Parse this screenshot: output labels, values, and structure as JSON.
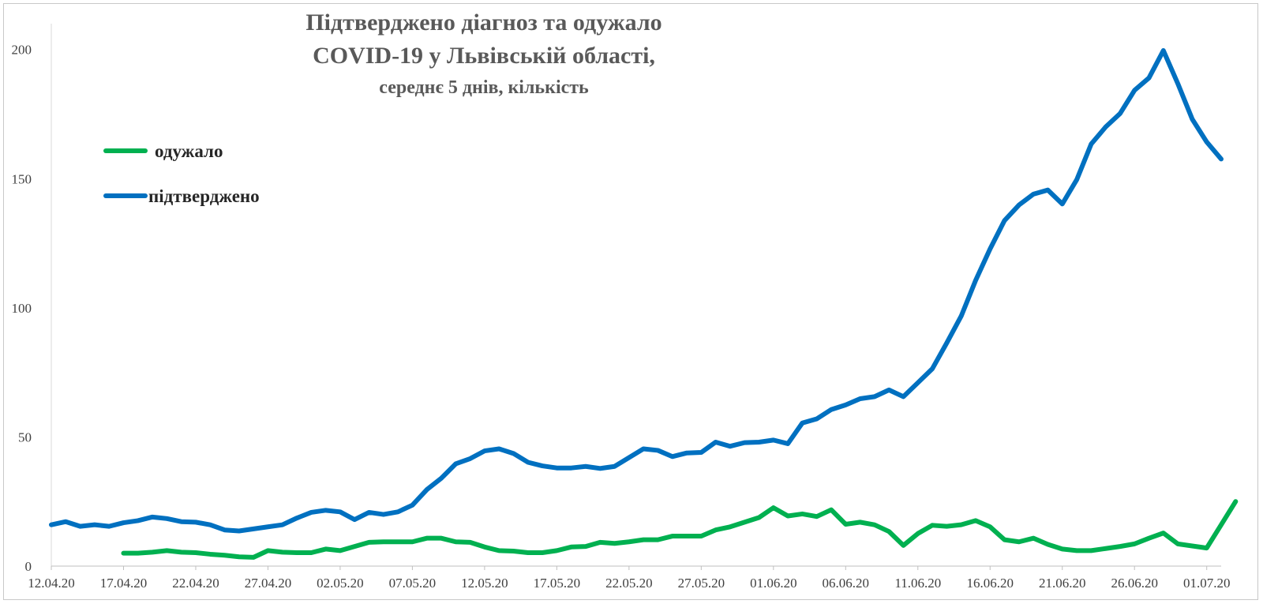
{
  "chart_data": {
    "type": "line",
    "title": [
      "Підтверджено діагноз та одужало",
      "COVID-19 у Львівській області,",
      "середнє 5 днів, кількість"
    ],
    "xlabel": "",
    "ylabel": "",
    "ylim": [
      0,
      210
    ],
    "yticks": [
      "0",
      "50",
      "100",
      "150",
      "200"
    ],
    "xticks": [
      "12.04.20",
      "17.04.20",
      "22.04.20",
      "27.04.20",
      "02.05.20",
      "07.05.20",
      "12.05.20",
      "17.05.20",
      "22.05.20",
      "27.05.20",
      "01.06.20",
      "06.06.20",
      "11.06.20",
      "16.06.20",
      "21.06.20",
      "26.06.20",
      "01.07.20"
    ],
    "x_start": "12.04.20",
    "x_end": "02.07.20",
    "legend_position": "top-left",
    "grid": false,
    "series": [
      {
        "name": "одужало",
        "color": "#00b050",
        "start": "17.04.20",
        "values": [
          5,
          5,
          5.4,
          6,
          5.4,
          5.2,
          4.6,
          4.2,
          3.6,
          3.4,
          6,
          5.4,
          5.2,
          5.2,
          6.6,
          6,
          7.6,
          9.2,
          9.4,
          9.4,
          9.4,
          10.8,
          10.8,
          9.4,
          9.2,
          7.4,
          6,
          5.8,
          5.2,
          5.2,
          6,
          7.4,
          7.6,
          9.2,
          8.8,
          9.4,
          10.2,
          10.2,
          11.6,
          11.6,
          11.6,
          14,
          15.2,
          17,
          18.8,
          22.6,
          19.4,
          20.2,
          19.2,
          21.8,
          16.2,
          17,
          16,
          13.4,
          8,
          12.6,
          15.8,
          15.4,
          16,
          17.6,
          15.2,
          10.2,
          9.4,
          10.8,
          8.4,
          6.6,
          6,
          6,
          6.8,
          7.6,
          8.6,
          10.8,
          12.8,
          8.6,
          7.8,
          7,
          16,
          25
        ]
      },
      {
        "name": "підтверджено",
        "color": "#0070c0",
        "start": "12.04.20",
        "values": [
          16,
          17.2,
          15.4,
          16,
          15.4,
          16.8,
          17.6,
          19,
          18.4,
          17.2,
          17,
          16,
          14,
          13.6,
          14.4,
          15.2,
          16,
          18.6,
          20.8,
          21.6,
          21,
          18,
          20.8,
          20,
          21,
          23.6,
          29.6,
          34,
          39.6,
          41.6,
          44.6,
          45.4,
          43.6,
          40.2,
          38.8,
          38,
          38,
          38.6,
          37.8,
          38.6,
          42,
          45.4,
          44.8,
          42.4,
          43.8,
          44,
          48,
          46.4,
          47.8,
          48,
          48.8,
          47.4,
          55.4,
          57,
          60.6,
          62.4,
          64.8,
          65.6,
          68.2,
          65.6,
          71,
          76.4,
          86.4,
          96.8,
          110.6,
          122.8,
          133.8,
          139.8,
          144,
          145.6,
          140.2,
          149.6,
          163.4,
          170,
          175.2,
          184.2,
          189,
          199.6,
          186.8,
          173,
          164.2,
          157.6
        ]
      }
    ]
  }
}
